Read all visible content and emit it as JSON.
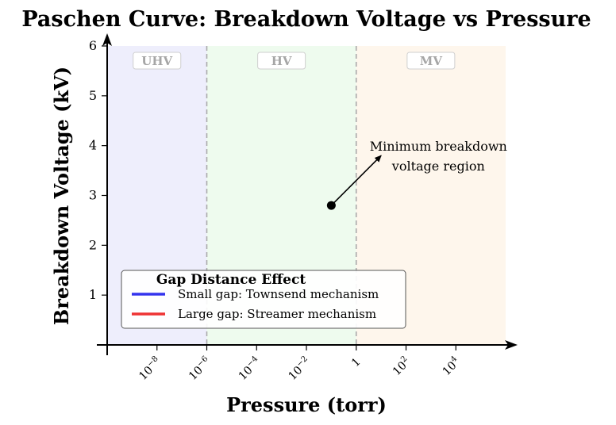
{
  "chart_data": {
    "type": "line",
    "title": "Paschen Curve: Breakdown Voltage vs Pressure",
    "xlabel": "Pressure (torr)",
    "ylabel": "Breakdown Voltage (kV)",
    "x_scale": "log10",
    "xlim_log10": [
      -10,
      6
    ],
    "ylim": [
      0,
      6
    ],
    "x_ticks": [
      {
        "log10": -8,
        "base": "10",
        "exp": "−8"
      },
      {
        "log10": -6,
        "base": "10",
        "exp": "−6"
      },
      {
        "log10": -4,
        "base": "10",
        "exp": "−4"
      },
      {
        "log10": -2,
        "base": "10",
        "exp": "−2"
      },
      {
        "log10": 0,
        "base": "1",
        "exp": ""
      },
      {
        "log10": 2,
        "base": "10",
        "exp": "2"
      },
      {
        "log10": 4,
        "base": "10",
        "exp": "4"
      }
    ],
    "y_ticks": [
      {
        "value": 1,
        "label": "1"
      },
      {
        "value": 2,
        "label": "2"
      },
      {
        "value": 3,
        "label": "3"
      },
      {
        "value": 4,
        "label": "4"
      },
      {
        "value": 5,
        "label": "5"
      },
      {
        "value": 6,
        "label": "6"
      }
    ],
    "regions": [
      {
        "label": "UHV",
        "from_log10": -10,
        "to_log10": -6,
        "color": "#eeeefc"
      },
      {
        "label": "HV",
        "from_log10": -6,
        "to_log10": 0,
        "color": "#eefbee"
      },
      {
        "label": "MV",
        "from_log10": 0,
        "to_log10": 6,
        "color": "#fef6ec"
      }
    ],
    "boundaries_log10": [
      -6,
      0
    ],
    "point": {
      "log10_x": -1,
      "y": 2.8
    },
    "annotation": {
      "lines": [
        "Minimum breakdown",
        "voltage region"
      ],
      "arrow_from": {
        "log10_x": -1,
        "y": 2.8
      },
      "arrow_to": {
        "log10_x": 1,
        "y": 3.8
      },
      "text_at": {
        "log10_x": 3.3,
        "y": 3.8
      }
    },
    "series": [
      {
        "name": "Small gap: Townsend mechanism",
        "color": "#3333ee",
        "x": [],
        "y": []
      },
      {
        "name": "Large gap: Streamer mechanism",
        "color": "#ee3333",
        "x": [],
        "y": []
      }
    ],
    "legend": {
      "title": "Gap Distance Effect",
      "position": "lower-left"
    }
  }
}
